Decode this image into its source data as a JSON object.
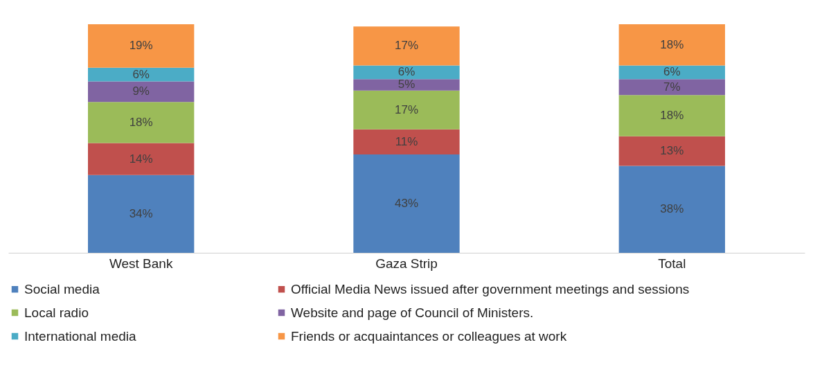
{
  "chart_data": {
    "type": "bar",
    "stacked": true,
    "categories": [
      "West Bank",
      "Gaza Strip",
      "Total"
    ],
    "series": [
      {
        "name": "Social media",
        "color": "#4f81bd",
        "values": [
          34,
          43,
          38
        ],
        "value_labels": [
          "34%",
          "43%",
          "38%"
        ]
      },
      {
        "name": "Official Media News issued after government meetings and sessions",
        "color": "#c0504d",
        "values": [
          14,
          11,
          13
        ],
        "value_labels": [
          "14%",
          "11%",
          "13%"
        ]
      },
      {
        "name": "Local radio",
        "color": "#9bbb59",
        "values": [
          18,
          17,
          18
        ],
        "value_labels": [
          "18%",
          "17%",
          "18%"
        ]
      },
      {
        "name": "Website and page of Council of Ministers.",
        "color": "#8064a2",
        "values": [
          9,
          5,
          7
        ],
        "value_labels": [
          "9%",
          "5%",
          "7%"
        ]
      },
      {
        "name": "International media",
        "color": "#4bacc6",
        "values": [
          6,
          6,
          6
        ],
        "value_labels": [
          "6%",
          "6%",
          "6%"
        ]
      },
      {
        "name": "Friends or acquaintances or colleagues at work",
        "color": "#f79646",
        "values": [
          19,
          17,
          18
        ],
        "value_labels": [
          "19%",
          "17%",
          "18%"
        ]
      }
    ],
    "legend": "bottom",
    "tick_labels": "x"
  }
}
